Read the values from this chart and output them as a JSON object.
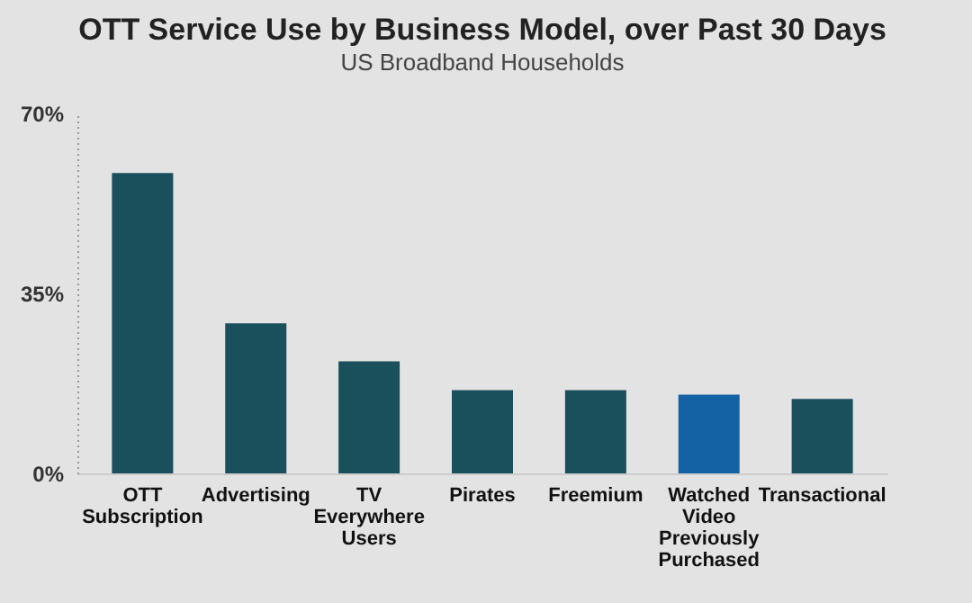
{
  "chart_data": {
    "type": "bar",
    "title": "OTT Service Use by Business Model, over Past 30 Days",
    "subtitle": "US Broadband Households",
    "categories": [
      "OTT Subscription",
      "Advertising",
      "TV Everywhere Users",
      "Pirates",
      "Freemium",
      "Watched Video Previously Purchased",
      "Transactional"
    ],
    "values": [
      58.4,
      29.2,
      21.8,
      16.2,
      16.2,
      15.3,
      14.5
    ],
    "colors": [
      "#1a4f5c",
      "#1a4f5c",
      "#1a4f5c",
      "#1a4f5c",
      "#1a4f5c",
      "#1462a3",
      "#1a4f5c"
    ],
    "ylim": [
      0,
      70
    ],
    "yticks": [
      {
        "value": 0,
        "label": "0%"
      },
      {
        "value": 35,
        "label": "35%"
      },
      {
        "value": 70,
        "label": "70%"
      }
    ],
    "grid": false
  }
}
